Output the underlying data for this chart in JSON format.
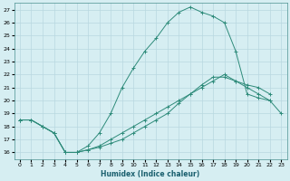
{
  "title": "",
  "xlabel": "Humidex (Indice chaleur)",
  "ylabel": "",
  "background_color": "#d6eef2",
  "grid_color": "#b8d8e0",
  "line_color": "#2e8b7a",
  "xlim": [
    -0.5,
    23.5
  ],
  "ylim": [
    15.5,
    27.5
  ],
  "xticks": [
    0,
    1,
    2,
    3,
    4,
    5,
    6,
    7,
    8,
    9,
    10,
    11,
    12,
    13,
    14,
    15,
    16,
    17,
    18,
    19,
    20,
    21,
    22,
    23
  ],
  "yticks": [
    16,
    17,
    18,
    19,
    20,
    21,
    22,
    23,
    24,
    25,
    26,
    27
  ],
  "line1_x": [
    0,
    1,
    2,
    3,
    4,
    5,
    6,
    7,
    8,
    9,
    10,
    11,
    12,
    13,
    14,
    15,
    16,
    17,
    18,
    19,
    20,
    21,
    22,
    23
  ],
  "line1_y": [
    18.5,
    18.5,
    18.0,
    17.5,
    16.0,
    16.0,
    16.2,
    16.5,
    17.0,
    17.5,
    18.0,
    18.5,
    19.0,
    19.5,
    20.0,
    20.5,
    21.0,
    21.5,
    22.0,
    21.5,
    21.0,
    20.5,
    20.0,
    19.0
  ],
  "line2_x": [
    0,
    1,
    2,
    3,
    4,
    5,
    6,
    7,
    8,
    9,
    10,
    11,
    12,
    13,
    14,
    15,
    16,
    17,
    18,
    19,
    20,
    21,
    22
  ],
  "line2_y": [
    18.5,
    18.5,
    18.0,
    17.5,
    16.0,
    16.0,
    16.5,
    17.5,
    19.0,
    21.0,
    22.5,
    23.8,
    24.8,
    26.0,
    26.8,
    27.2,
    26.8,
    26.5,
    26.0,
    23.8,
    20.5,
    20.2,
    20.0
  ],
  "line3_x": [
    0,
    1,
    2,
    3,
    4,
    5,
    6,
    7,
    8,
    9,
    10,
    11,
    12,
    13,
    14,
    15,
    16,
    17,
    18,
    19,
    20,
    21,
    22
  ],
  "line3_y": [
    18.5,
    18.5,
    18.0,
    17.5,
    16.0,
    16.0,
    16.2,
    16.4,
    16.7,
    17.0,
    17.5,
    18.0,
    18.5,
    19.0,
    19.8,
    20.5,
    21.2,
    21.8,
    21.8,
    21.5,
    21.2,
    21.0,
    20.5
  ]
}
